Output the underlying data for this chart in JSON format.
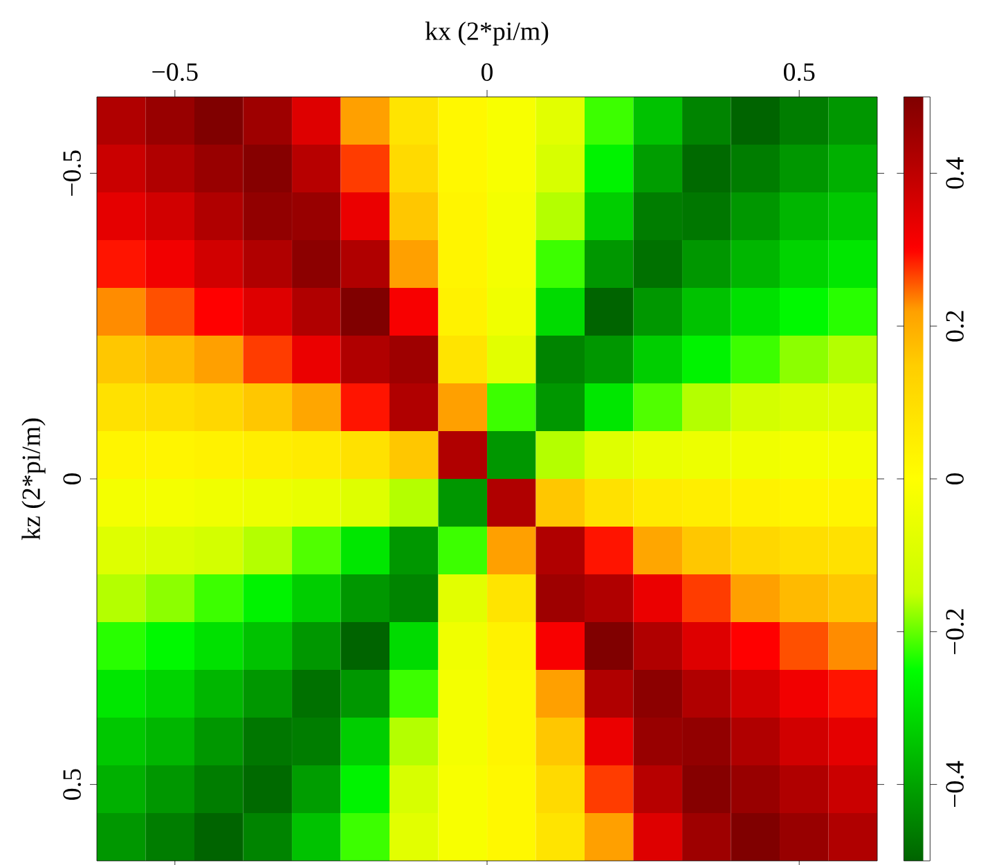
{
  "chart_data": {
    "type": "heatmap",
    "xlabel": "kx (2*pi/m)",
    "ylabel": "kz (2*pi/m)",
    "x": [
      -0.5859,
      -0.5078,
      -0.4297,
      -0.3516,
      -0.2734,
      -0.1953,
      -0.1172,
      -0.0391,
      0.0391,
      0.1172,
      0.1953,
      0.2734,
      0.3516,
      0.4297,
      0.5078,
      0.5859
    ],
    "y": [
      -0.5859,
      -0.5078,
      -0.4297,
      -0.3516,
      -0.2734,
      -0.1953,
      -0.1172,
      -0.0391,
      0.0391,
      0.1172,
      0.1953,
      0.2734,
      0.3516,
      0.4297,
      0.5078,
      0.5859
    ],
    "xlim": [
      -0.625,
      0.625
    ],
    "ylim": [
      0.625,
      -0.625
    ],
    "xticks": [
      {
        "value": -0.5,
        "label": "−0.5"
      },
      {
        "value": 0,
        "label": "0"
      },
      {
        "value": 0.5,
        "label": "0.5"
      }
    ],
    "yticks": [
      {
        "value": -0.5,
        "label": "−0.5"
      },
      {
        "value": 0,
        "label": "0"
      },
      {
        "value": 0.5,
        "label": "0.5"
      }
    ],
    "clim": [
      -0.5,
      0.5
    ],
    "cticks": [
      {
        "value": -0.4,
        "label": "−0.4"
      },
      {
        "value": -0.2,
        "label": "−0.2"
      },
      {
        "value": 0,
        "label": "0"
      },
      {
        "value": 0.2,
        "label": "0.2"
      },
      {
        "value": 0.4,
        "label": "0.4"
      }
    ],
    "cells": [
      [
        0.42,
        0.46,
        0.5,
        0.45,
        0.35,
        0.22,
        0.08,
        0.02,
        -0.02,
        -0.08,
        -0.22,
        -0.35,
        -0.45,
        -0.5,
        -0.46,
        -0.42
      ],
      [
        0.38,
        0.42,
        0.46,
        0.49,
        0.41,
        0.27,
        0.11,
        0.02,
        -0.02,
        -0.11,
        -0.27,
        -0.41,
        -0.49,
        -0.46,
        -0.42,
        -0.38
      ],
      [
        0.34,
        0.37,
        0.42,
        0.47,
        0.46,
        0.33,
        0.16,
        0.03,
        -0.03,
        -0.16,
        -0.33,
        -0.46,
        -0.47,
        -0.42,
        -0.37,
        -0.34
      ],
      [
        0.29,
        0.32,
        0.37,
        0.42,
        0.48,
        0.42,
        0.22,
        0.03,
        -0.03,
        -0.22,
        -0.42,
        -0.48,
        -0.42,
        -0.37,
        -0.32,
        -0.29
      ],
      [
        0.23,
        0.26,
        0.3,
        0.35,
        0.42,
        0.5,
        0.31,
        0.04,
        -0.04,
        -0.31,
        -0.5,
        -0.42,
        -0.35,
        -0.3,
        -0.26,
        -0.23
      ],
      [
        0.16,
        0.18,
        0.22,
        0.27,
        0.33,
        0.42,
        0.45,
        0.08,
        -0.08,
        -0.45,
        -0.42,
        -0.33,
        -0.27,
        -0.22,
        -0.18,
        -0.16
      ],
      [
        0.09,
        0.1,
        0.12,
        0.16,
        0.21,
        0.29,
        0.42,
        0.22,
        -0.22,
        -0.42,
        -0.29,
        -0.21,
        -0.16,
        -0.12,
        -0.1,
        -0.09
      ],
      [
        0.03,
        0.03,
        0.04,
        0.05,
        0.06,
        0.09,
        0.16,
        0.42,
        -0.42,
        -0.16,
        -0.09,
        -0.06,
        -0.05,
        -0.04,
        -0.03,
        -0.03
      ],
      [
        -0.03,
        -0.03,
        -0.04,
        -0.05,
        -0.06,
        -0.09,
        -0.16,
        -0.42,
        0.42,
        0.16,
        0.09,
        0.06,
        0.05,
        0.04,
        0.03,
        0.03
      ],
      [
        -0.09,
        -0.1,
        -0.12,
        -0.16,
        -0.21,
        -0.29,
        -0.42,
        -0.22,
        0.22,
        0.42,
        0.29,
        0.21,
        0.16,
        0.12,
        0.1,
        0.09
      ],
      [
        -0.16,
        -0.18,
        -0.22,
        -0.27,
        -0.33,
        -0.42,
        -0.45,
        -0.08,
        0.08,
        0.45,
        0.42,
        0.33,
        0.27,
        0.22,
        0.18,
        0.16
      ],
      [
        -0.23,
        -0.26,
        -0.3,
        -0.35,
        -0.42,
        -0.5,
        -0.31,
        -0.04,
        0.04,
        0.31,
        0.5,
        0.42,
        0.35,
        0.3,
        0.26,
        0.23
      ],
      [
        -0.29,
        -0.32,
        -0.37,
        -0.42,
        -0.48,
        -0.42,
        -0.22,
        -0.03,
        0.03,
        0.22,
        0.42,
        0.48,
        0.42,
        0.37,
        0.32,
        0.29
      ],
      [
        -0.34,
        -0.37,
        -0.42,
        -0.47,
        -0.46,
        -0.33,
        -0.16,
        -0.03,
        0.03,
        0.16,
        0.33,
        0.46,
        0.47,
        0.42,
        0.37,
        0.34
      ],
      [
        -0.38,
        -0.42,
        -0.46,
        -0.49,
        -0.41,
        -0.27,
        -0.11,
        -0.02,
        0.02,
        0.11,
        0.27,
        0.41,
        0.49,
        0.46,
        0.42,
        0.38
      ],
      [
        -0.42,
        -0.46,
        -0.5,
        -0.45,
        -0.35,
        -0.22,
        -0.08,
        -0.02,
        0.02,
        0.08,
        0.22,
        0.35,
        0.45,
        0.5,
        0.46,
        0.42
      ]
    ]
  }
}
